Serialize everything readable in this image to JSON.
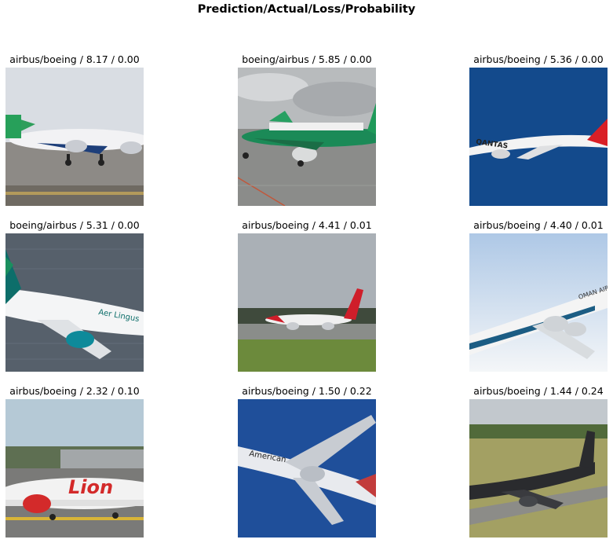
{
  "title": "Prediction/Actual/Loss/Probability",
  "panels": [
    {
      "caption": "airbus/boeing / 8.17 / 0.00",
      "scene": "green-tail-jet-on-runway"
    },
    {
      "caption": "boeing/airbus / 5.85 / 0.00",
      "scene": "green-livery-jet-on-apron"
    },
    {
      "caption": "airbus/boeing / 5.36 / 0.00",
      "scene": "qantas-jet-blue-sky"
    },
    {
      "caption": "boeing/airbus / 5.31 / 0.00",
      "scene": "aer-lingus-jet-over-water"
    },
    {
      "caption": "airbus/boeing / 4.41 / 0.01",
      "scene": "norwegian-jet-on-runway"
    },
    {
      "caption": "airbus/boeing / 4.40 / 0.01",
      "scene": "oman-air-jet-in-sky"
    },
    {
      "caption": "airbus/boeing / 2.32 / 0.10",
      "scene": "lion-air-jet-taxiing"
    },
    {
      "caption": "airbus/boeing / 1.50 / 0.22",
      "scene": "american-jet-blue-sky"
    },
    {
      "caption": "airbus/boeing / 1.44 / 0.24",
      "scene": "black-jet-on-runway"
    }
  ],
  "liveries": {
    "p3": "QANTAS",
    "p4": "Aer Lingus",
    "p6": "OMAN AIR",
    "p7": "Lion",
    "p8": "American"
  }
}
